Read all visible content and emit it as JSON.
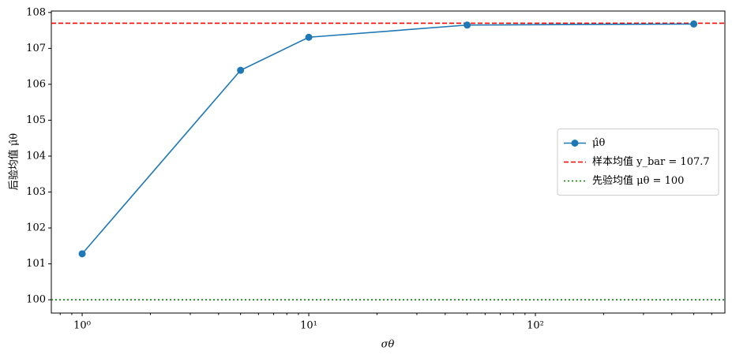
{
  "chart_data": {
    "type": "line",
    "x_label": "σθ",
    "y_label": "后验均值 μ̂θ",
    "x_log": true,
    "x": [
      1,
      5,
      10,
      50,
      500
    ],
    "series": [
      {
        "name": "μ̂θ",
        "color": "#1f77b4",
        "values": [
          101.28,
          106.39,
          107.31,
          107.65,
          107.68
        ]
      }
    ],
    "hlines": [
      {
        "name": "样本均值 y_bar = 107.7",
        "color": "#ff0000",
        "value": 107.7,
        "style": "dashed"
      },
      {
        "name": "先验均值 μθ = 100",
        "color": "#008000",
        "value": 100,
        "style": "dotted"
      }
    ],
    "xlim": [
      0.731,
      686
    ],
    "ylim": [
      99.63,
      108.04
    ],
    "xticks": [
      {
        "value": 1,
        "label": "10⁰"
      },
      {
        "value": 10,
        "label": "10¹"
      },
      {
        "value": 100,
        "label": "10²"
      }
    ],
    "xminorticks": [
      0.8,
      0.9,
      2,
      3,
      4,
      5,
      6,
      7,
      8,
      9,
      20,
      30,
      40,
      50,
      60,
      70,
      80,
      90,
      200,
      300,
      400,
      500,
      600
    ],
    "yticks": [
      100,
      101,
      102,
      103,
      104,
      105,
      106,
      107,
      108
    ],
    "legend": "center right"
  }
}
